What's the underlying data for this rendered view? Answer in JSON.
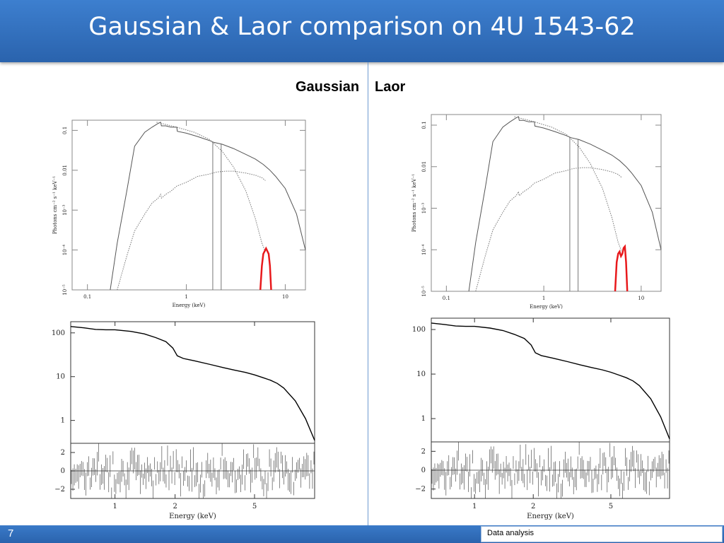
{
  "slide": {
    "title": "Gaussian & Laor comparison on 4U 1543-62",
    "page_number": "7",
    "footer_label": "Data analysis"
  },
  "columns": [
    {
      "label": "Gaussian",
      "line_model": "gaussian"
    },
    {
      "label": "Laor",
      "line_model": "laor"
    }
  ],
  "model_plot": {
    "xlabel": "Energy (keV)",
    "ylabel": "Photons cm⁻² s⁻¹ keV⁻¹",
    "xticks": [
      "0.1",
      "1",
      "10"
    ],
    "yticks": [
      "10⁻⁵",
      "10⁻⁴",
      "10⁻³",
      "0.01",
      "0.1"
    ],
    "xlim": [
      0.07,
      16
    ],
    "ylim": [
      1e-05,
      0.18
    ],
    "x_scale": "log",
    "y_scale": "log",
    "highlight_color": "#e8191c"
  },
  "spectrum_plot": {
    "yticks": [
      "100",
      "10",
      "1"
    ],
    "resid_yticks": [
      "2",
      "0",
      "−2"
    ],
    "xticks": [
      "1",
      "2",
      "5"
    ],
    "xlabel": "Energy (keV)",
    "xlim": [
      0.6,
      10
    ],
    "ylim": [
      0.3,
      180
    ],
    "resid_ylim": [
      -3,
      3
    ],
    "x_scale": "log",
    "y_scale": "log"
  },
  "chart_data": [
    {
      "type": "line",
      "panel": "gaussian-model",
      "series": [
        {
          "name": "",
          "x": [
            0.17,
            0.2,
            0.25,
            0.3,
            0.38,
            0.45,
            0.52,
            0.55,
            0.56,
            0.62,
            0.7,
            0.78,
            0.8,
            0.81,
            1,
            1.3,
            1.7,
            1.9,
            2.3,
            3,
            4,
            5,
            6,
            7,
            8,
            10,
            13,
            16
          ],
          "values": [
            1e-05,
            0.00015,
            0.003,
            0.04,
            0.09,
            0.12,
            0.15,
            0.16,
            0.13,
            0.13,
            0.12,
            0.12,
            0.12,
            0.095,
            0.085,
            0.07,
            0.056,
            0.05,
            0.045,
            0.035,
            0.025,
            0.019,
            0.014,
            0.01,
            0.007,
            0.0035,
            0.0008,
            0.0001
          ]
        },
        {
          "name": "",
          "x": [
            0.2,
            0.25,
            0.3,
            0.38,
            0.45,
            0.52,
            0.55,
            0.56,
            0.62,
            0.7,
            0.8,
            1,
            1.3,
            1.7,
            2,
            2.5,
            3,
            4,
            5,
            5.8,
            6.3
          ],
          "values": [
            1e-05,
            7e-05,
            0.0003,
            0.0008,
            0.0015,
            0.002,
            0.0025,
            0.002,
            0.0025,
            0.003,
            0.004,
            0.005,
            0.007,
            0.008,
            0.009,
            0.0095,
            0.0095,
            0.0085,
            0.0075,
            0.0065,
            0.0055
          ]
        },
        {
          "name": "",
          "x": [
            0.5,
            0.8,
            1.2,
            1.7,
            2.3,
            3,
            4,
            5,
            5.8,
            6.3
          ],
          "values": [
            0.16,
            0.12,
            0.09,
            0.06,
            0.03,
            0.012,
            0.003,
            0.0006,
            0.00015,
            9e-05
          ]
        },
        {
          "name": "",
          "x": [
            5.6,
            5.8,
            6.0,
            6.4,
            6.8,
            7.0,
            7.2
          ],
          "values": [
            1e-05,
            4e-05,
            8e-05,
            0.00011,
            8e-05,
            4e-05,
            1e-05
          ]
        }
      ],
      "vlines": [
        1.85,
        2.25
      ],
      "xlim": [
        0.07,
        16
      ],
      "ylim": [
        1e-05,
        0.18
      ]
    },
    {
      "type": "line",
      "panel": "laor-model",
      "series": [
        {
          "name": "",
          "x": [
            0.17,
            0.2,
            0.25,
            0.3,
            0.38,
            0.45,
            0.52,
            0.55,
            0.56,
            0.62,
            0.7,
            0.78,
            0.8,
            0.81,
            1,
            1.3,
            1.7,
            1.9,
            2.3,
            3,
            4,
            5,
            6,
            7,
            8,
            10,
            13,
            16
          ],
          "values": [
            1e-05,
            0.00015,
            0.003,
            0.04,
            0.09,
            0.12,
            0.15,
            0.16,
            0.13,
            0.13,
            0.12,
            0.12,
            0.12,
            0.095,
            0.085,
            0.07,
            0.056,
            0.05,
            0.045,
            0.035,
            0.025,
            0.019,
            0.014,
            0.01,
            0.007,
            0.0035,
            0.0008,
            0.0001
          ]
        },
        {
          "name": "",
          "x": [
            0.2,
            0.25,
            0.3,
            0.38,
            0.45,
            0.52,
            0.55,
            0.56,
            0.62,
            0.7,
            0.8,
            1,
            1.3,
            1.7,
            2,
            2.5,
            3,
            4,
            5,
            5.8,
            6.3
          ],
          "values": [
            1e-05,
            7e-05,
            0.0003,
            0.0008,
            0.0015,
            0.002,
            0.0025,
            0.002,
            0.0025,
            0.003,
            0.004,
            0.005,
            0.007,
            0.008,
            0.009,
            0.0095,
            0.0095,
            0.0085,
            0.0075,
            0.0065,
            0.0055
          ]
        },
        {
          "name": "",
          "x": [
            0.5,
            0.8,
            1.2,
            1.7,
            2.3,
            3,
            4,
            5,
            5.8,
            6.3
          ],
          "values": [
            0.16,
            0.12,
            0.09,
            0.06,
            0.03,
            0.012,
            0.003,
            0.0006,
            0.00015,
            9e-05
          ]
        },
        {
          "name": "",
          "x": [
            5.4,
            5.6,
            5.8,
            6.0,
            6.2,
            6.4,
            6.6,
            6.8,
            7.0,
            7.2
          ],
          "values": [
            1e-05,
            5e-05,
            8e-05,
            9e-05,
            7e-05,
            8e-05,
            0.00011,
            0.00012,
            5e-05,
            1e-05
          ]
        }
      ],
      "vlines": [
        1.85,
        2.25
      ],
      "xlim": [
        0.07,
        16
      ],
      "ylim": [
        1e-05,
        0.18
      ]
    },
    {
      "type": "line",
      "panel": "gaussian-spectrum",
      "series": [
        {
          "name": "",
          "x": [
            0.6,
            0.7,
            0.8,
            0.9,
            1,
            1.2,
            1.4,
            1.6,
            1.8,
            1.95,
            2.05,
            2.2,
            2.5,
            3,
            3.5,
            4,
            4.5,
            5,
            5.5,
            6,
            6.5,
            7,
            8,
            9,
            10
          ],
          "values": [
            140,
            130,
            120,
            118,
            118,
            108,
            95,
            78,
            63,
            45,
            30,
            26,
            23,
            19,
            16,
            14,
            12.5,
            11,
            9.5,
            8.3,
            7,
            5.5,
            2.8,
            1.1,
            0.35
          ]
        }
      ],
      "residual_scatter": 1.0,
      "xlim": [
        0.6,
        10
      ],
      "ylim": [
        0.3,
        180
      ],
      "resid_ylim": [
        -3,
        3
      ]
    },
    {
      "type": "line",
      "panel": "laor-spectrum",
      "series": [
        {
          "name": "",
          "x": [
            0.6,
            0.7,
            0.8,
            0.9,
            1,
            1.2,
            1.4,
            1.6,
            1.8,
            1.95,
            2.05,
            2.2,
            2.5,
            3,
            3.5,
            4,
            4.5,
            5,
            5.5,
            6,
            6.5,
            7,
            8,
            9,
            10
          ],
          "values": [
            140,
            130,
            120,
            118,
            118,
            108,
            95,
            78,
            63,
            45,
            30,
            26,
            23,
            19,
            16,
            14,
            12.5,
            11,
            9.5,
            8.3,
            7,
            5.5,
            2.8,
            1.1,
            0.35
          ]
        }
      ],
      "residual_scatter": 1.0,
      "xlim": [
        0.6,
        10
      ],
      "ylim": [
        0.3,
        180
      ],
      "resid_ylim": [
        -3,
        3
      ]
    }
  ]
}
